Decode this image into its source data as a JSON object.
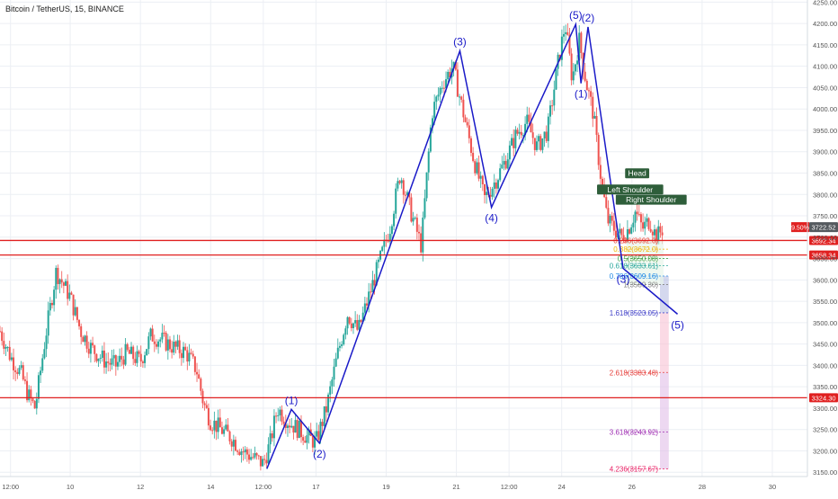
{
  "chart_data": {
    "type": "candlestick",
    "title": "Bitcoin / TetherUS, 15, BINANCE",
    "colors": {
      "up": "#26a69a",
      "down": "#ef5350",
      "wave": "#1a1ac8",
      "hline": "#e02020",
      "grid": "#eceff4",
      "axis_text": "#555555"
    },
    "y_axis": {
      "min": 3140,
      "max": 4255,
      "ticks": [
        3150,
        3200,
        3250,
        3300,
        3350,
        3400,
        3450,
        3500,
        3550,
        3600,
        3650,
        3700,
        3750,
        3800,
        3850,
        3900,
        3950,
        4000,
        4050,
        4100,
        4150,
        4200,
        4250
      ],
      "tick_labels": [
        "3150.00",
        "3200.00",
        "3250.00",
        "3300.00",
        "3350.00",
        "3400.00",
        "3450.00",
        "3500.00",
        "3550.00",
        "3600.00",
        "3650.00",
        "3700.00",
        "3750.00",
        "3800.00",
        "3850.00",
        "3900.00",
        "3950.00",
        "4000.00",
        "4050.00",
        "4100.00",
        "4150.00",
        "4200.00",
        "4250.00"
      ]
    },
    "x_axis": {
      "min": 0,
      "max": 23,
      "ticks": [
        0.3,
        2,
        4,
        6,
        7.5,
        9,
        11,
        13,
        14.5,
        16,
        18,
        20,
        22
      ],
      "tick_labels": [
        "12:00",
        "10",
        "12",
        "14",
        "12:00",
        "17",
        "19",
        "21",
        "12:00",
        "24",
        "26",
        "28",
        "30"
      ]
    },
    "price_path": [
      [
        0,
        3480
      ],
      [
        0.3,
        3420
      ],
      [
        0.6,
        3380
      ],
      [
        0.8,
        3330
      ],
      [
        1,
        3300
      ],
      [
        1.3,
        3470
      ],
      [
        1.6,
        3620
      ],
      [
        2,
        3560
      ],
      [
        2.3,
        3480
      ],
      [
        2.6,
        3440
      ],
      [
        3,
        3410
      ],
      [
        3.3,
        3400
      ],
      [
        3.6,
        3430
      ],
      [
        4,
        3410
      ],
      [
        4.3,
        3470
      ],
      [
        4.6,
        3460
      ],
      [
        5,
        3440
      ],
      [
        5.3,
        3430
      ],
      [
        5.6,
        3390
      ],
      [
        5.8,
        3310
      ],
      [
        6,
        3270
      ],
      [
        6.3,
        3250
      ],
      [
        6.6,
        3230
      ],
      [
        6.9,
        3200
      ],
      [
        7.2,
        3185
      ],
      [
        7.5,
        3170
      ],
      [
        7.7,
        3220
      ],
      [
        7.9,
        3300
      ],
      [
        8.2,
        3270
      ],
      [
        8.5,
        3250
      ],
      [
        8.8,
        3230
      ],
      [
        9.0,
        3220
      ],
      [
        9.3,
        3300
      ],
      [
        9.6,
        3420
      ],
      [
        9.9,
        3520
      ],
      [
        10.2,
        3480
      ],
      [
        10.5,
        3560
      ],
      [
        10.8,
        3640
      ],
      [
        11.1,
        3720
      ],
      [
        11.4,
        3850
      ],
      [
        11.7,
        3760
      ],
      [
        12,
        3680
      ],
      [
        12.3,
        3990
      ],
      [
        12.6,
        4060
      ],
      [
        12.9,
        4100
      ],
      [
        13.2,
        3990
      ],
      [
        13.5,
        3880
      ],
      [
        13.8,
        3790
      ],
      [
        14.1,
        3830
      ],
      [
        14.4,
        3880
      ],
      [
        14.7,
        3940
      ],
      [
        15,
        3970
      ],
      [
        15.3,
        3910
      ],
      [
        15.6,
        3950
      ],
      [
        15.9,
        4110
      ],
      [
        16.1,
        4200
      ],
      [
        16.3,
        4070
      ],
      [
        16.5,
        4160
      ],
      [
        16.7,
        4060
      ],
      [
        16.9,
        3990
      ],
      [
        17.1,
        3850
      ],
      [
        17.3,
        3740
      ],
      [
        17.5,
        3720
      ],
      [
        17.7,
        3700
      ],
      [
        17.9,
        3720
      ],
      [
        18.1,
        3760
      ],
      [
        18.3,
        3720
      ],
      [
        18.5,
        3740
      ],
      [
        18.7,
        3700
      ],
      [
        18.9,
        3722
      ]
    ],
    "horizontal_lines": [
      {
        "price": 3692.34,
        "label": "3692.34"
      },
      {
        "price": 3658.34,
        "label": "3658.34"
      },
      {
        "price": 3324.3,
        "label": "3324.30"
      }
    ],
    "current_price": {
      "price": 3722.52,
      "label": "3722.52",
      "change_label": "9.50%"
    },
    "elliott_wave": [
      {
        "x": 7.6,
        "y": 3158,
        "label": ""
      },
      {
        "x": 8.3,
        "y": 3297,
        "label": "(1)",
        "label_pos": "above"
      },
      {
        "x": 9.1,
        "y": 3218,
        "label": "(2)",
        "label_pos": "below"
      },
      {
        "x": 13.1,
        "y": 4136,
        "label": "(3)",
        "label_pos": "above"
      },
      {
        "x": 14.0,
        "y": 3770,
        "label": "(4)",
        "label_pos": "below"
      },
      {
        "x": 16.4,
        "y": 4198,
        "label": "(5)",
        "label_pos": "above"
      },
      {
        "x": 16.55,
        "y": 4060,
        "label": "(1)",
        "label_pos": "below"
      },
      {
        "x": 16.75,
        "y": 4192,
        "label": "(2)",
        "label_pos": "above"
      },
      {
        "x": 17.75,
        "y": 3627,
        "label": "(3)",
        "label_pos": "below"
      },
      {
        "x": 19.3,
        "y": 3520,
        "label": "(5)",
        "label_pos": "below"
      }
    ],
    "head_shoulders": [
      {
        "x": 17.95,
        "y": 3800,
        "label": "Left Shoulder"
      },
      {
        "x": 18.15,
        "y": 3838,
        "label": "Head"
      },
      {
        "x": 18.55,
        "y": 3776,
        "label": "Right Shoulder"
      }
    ],
    "fib_levels": [
      {
        "ratio": "0.236",
        "price": 3692.0,
        "label": "0.236(3692.0)",
        "color": "#e74c3c"
      },
      {
        "ratio": "0.382",
        "price": 3672.0,
        "label": "0.382(3672.0)",
        "color": "#f0b400"
      },
      {
        "ratio": "0.5",
        "price": 3650.08,
        "label": "0.5(3650.08)",
        "color": "#43a047"
      },
      {
        "ratio": "0.618",
        "price": 3633.61,
        "label": "0.618(3633.61)",
        "color": "#26a69a"
      },
      {
        "ratio": "0.786",
        "price": 3609.16,
        "label": "0.786(3609.16)",
        "color": "#1e88e5"
      },
      {
        "ratio": "1",
        "price": 3589.3,
        "label": "1(3589.30)",
        "color": "#808080"
      },
      {
        "ratio": "1.618",
        "price": 3523.05,
        "label": "1.618(3523.05)",
        "color": "#3f3fc8"
      },
      {
        "ratio": "2.618",
        "price": 3383.48,
        "label": "2.618(3383.48)",
        "color": "#e53935"
      },
      {
        "ratio": "3.618",
        "price": 3243.92,
        "label": "3.618(3243.92)",
        "color": "#9c27b0"
      },
      {
        "ratio": "4.236",
        "price": 3157.67,
        "label": "4.236(3157.67)",
        "color": "#e91e63"
      }
    ]
  }
}
